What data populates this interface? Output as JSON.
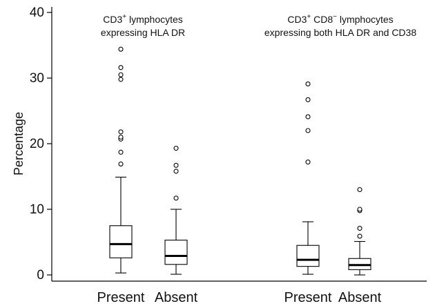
{
  "chart_data": {
    "type": "box",
    "ylabel": "Percentage",
    "ylim": [
      0,
      40
    ],
    "yticks": [
      0,
      10,
      20,
      30,
      40
    ],
    "panels": [
      {
        "title_line1": {
          "pre": "CD3",
          "sup1": "+",
          "post": " lymphocytes"
        },
        "title_line2": "expressing HLA DR",
        "boxes": [
          {
            "category": "Present",
            "whisker_low": 0.3,
            "q1": 2.6,
            "median": 4.7,
            "q3": 7.5,
            "whisker_high": 14.9,
            "outliers": [
              16.9,
              18.7,
              20.7,
              21.0,
              21.8,
              29.8,
              30.5,
              31.6,
              34.4
            ]
          },
          {
            "category": "Absent",
            "whisker_low": 0.1,
            "q1": 1.6,
            "median": 2.9,
            "q3": 5.3,
            "whisker_high": 10.0,
            "outliers": [
              11.7,
              15.8,
              16.7,
              19.3
            ]
          }
        ]
      },
      {
        "title_line1": {
          "pre": "CD3",
          "sup1": "+",
          "mid": " CD8",
          "sup2": "−",
          "post": " lymphocytes"
        },
        "title_line2": "expressing both HLA DR and CD38",
        "boxes": [
          {
            "category": "Present",
            "whisker_low": 0.1,
            "q1": 1.3,
            "median": 2.3,
            "q3": 4.5,
            "whisker_high": 8.1,
            "outliers": [
              17.2,
              22.0,
              24.1,
              26.7,
              29.1
            ]
          },
          {
            "category": "Absent",
            "whisker_low": 0.0,
            "q1": 0.8,
            "median": 1.5,
            "q3": 2.5,
            "whisker_high": 5.1,
            "outliers": [
              5.9,
              7.1,
              9.8,
              10.0,
              13.0
            ]
          }
        ]
      }
    ]
  }
}
